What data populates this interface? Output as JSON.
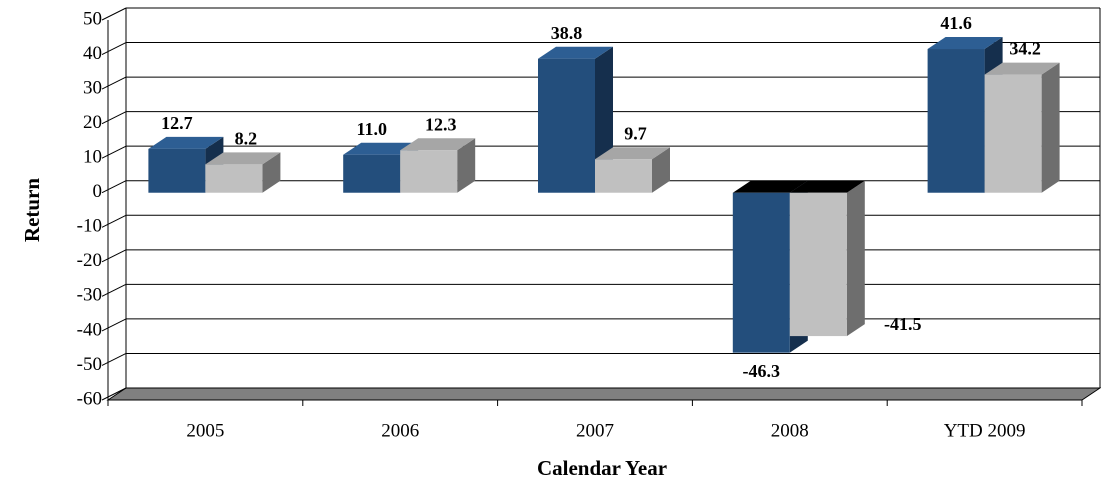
{
  "chart_data": {
    "type": "bar3d",
    "categories": [
      "2005",
      "2006",
      "2007",
      "2008",
      "YTD 2009"
    ],
    "series": [
      {
        "color": "#234e7c",
        "values": [
          12.7,
          11.0,
          38.8,
          -46.3,
          41.6
        ],
        "value_labels": [
          "12.7",
          "11.0",
          "38.8",
          "-46.3",
          "41.6"
        ]
      },
      {
        "color": "#c0c0c0",
        "values": [
          8.2,
          12.3,
          9.7,
          -41.5,
          34.2
        ],
        "value_labels": [
          "8.2",
          "12.3",
          "9.7",
          "-41.5",
          "34.2"
        ]
      }
    ],
    "ylim": [
      -60,
      50
    ],
    "yticks": [
      -60,
      -50,
      -40,
      -30,
      -20,
      -10,
      0,
      10,
      20,
      30,
      40,
      50
    ],
    "y_label": "Return",
    "x_label": "Calendar Year",
    "grid": true
  }
}
